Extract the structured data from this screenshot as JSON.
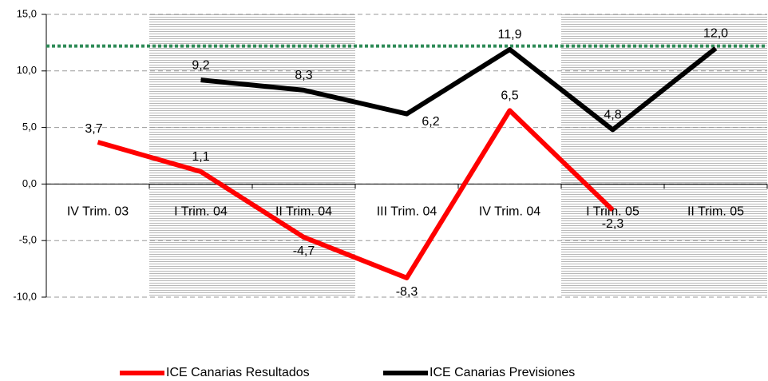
{
  "chart_data": {
    "type": "line",
    "categories": [
      "IV Trim. 03",
      "I Trim. 04",
      "II Trim. 04",
      "III Trim. 04",
      "IV Trim. 04",
      "I Trim. 05",
      "II Trim. 05"
    ],
    "series": [
      {
        "name": "ICE Canarias Resultados",
        "color": "#ff0000",
        "values": [
          3.7,
          1.1,
          -4.7,
          -8.3,
          6.5,
          -2.3,
          null
        ],
        "value_labels": [
          "3,7",
          "1,1",
          "-4,7",
          "-8,3",
          "6,5",
          "-2,3",
          null
        ]
      },
      {
        "name": "ICE Canarias Previsiones",
        "color": "#000000",
        "values": [
          null,
          9.2,
          8.3,
          6.2,
          11.9,
          4.8,
          12.0
        ],
        "value_labels": [
          null,
          "9,2",
          "8,3",
          "6,2",
          "11,9",
          "4,8",
          "12,0"
        ]
      }
    ],
    "reference_line": {
      "value": 12.2,
      "color": "#2e8b57"
    },
    "ylim": [
      -10,
      15
    ],
    "yticks": [
      {
        "value": -10,
        "label": "-10,0"
      },
      {
        "value": -5,
        "label": "-5,0"
      },
      {
        "value": 0,
        "label": "0,0"
      },
      {
        "value": 5,
        "label": "5,0"
      },
      {
        "value": 10,
        "label": "10,0"
      },
      {
        "value": 15,
        "label": "15,0"
      }
    ],
    "grid": true,
    "legend": "bottom"
  }
}
